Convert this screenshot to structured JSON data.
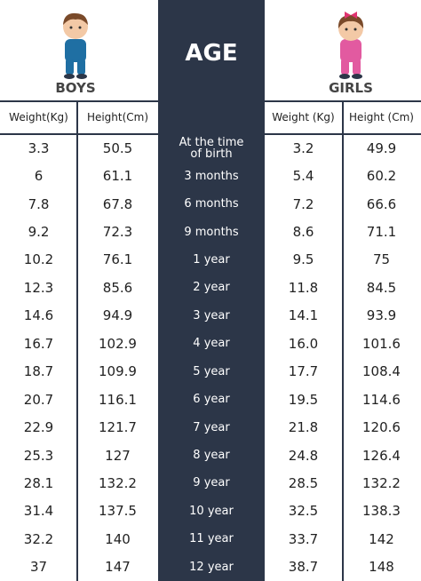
{
  "header": {
    "boys": "BOYS",
    "age": "AGE",
    "girls": "GIRLS"
  },
  "table": {
    "columns": [
      "Weight(Kg)",
      "Height(Cm)",
      null,
      "Weight (Kg)",
      "Height (Cm)"
    ],
    "rows": [
      [
        "3.3",
        "50.5",
        "At the time of birth",
        "3.2",
        "49.9"
      ],
      [
        "6",
        "61.1",
        "3 months",
        "5.4",
        "60.2"
      ],
      [
        "7.8",
        "67.8",
        "6 months",
        "7.2",
        "66.6"
      ],
      [
        "9.2",
        "72.3",
        "9 months",
        "8.6",
        "71.1"
      ],
      [
        "10.2",
        "76.1",
        "1 year",
        "9.5",
        "75"
      ],
      [
        "12.3",
        "85.6",
        "2 year",
        "11.8",
        "84.5"
      ],
      [
        "14.6",
        "94.9",
        "3 year",
        "14.1",
        "93.9"
      ],
      [
        "16.7",
        "102.9",
        "4 year",
        "16.0",
        "101.6"
      ],
      [
        "18.7",
        "109.9",
        "5 year",
        "17.7",
        "108.4"
      ],
      [
        "20.7",
        "116.1",
        "6 year",
        "19.5",
        "114.6"
      ],
      [
        "22.9",
        "121.7",
        "7 year",
        "21.8",
        "120.6"
      ],
      [
        "25.3",
        "127",
        "8 year",
        "24.8",
        "126.4"
      ],
      [
        "28.1",
        "132.2",
        "9 year",
        "28.5",
        "132.2"
      ],
      [
        "31.4",
        "137.5",
        "10 year",
        "32.5",
        "138.3"
      ],
      [
        "32.2",
        "140",
        "11 year",
        "33.7",
        "142"
      ],
      [
        "37",
        "147",
        "12 year",
        "38.7",
        "148"
      ]
    ]
  }
}
